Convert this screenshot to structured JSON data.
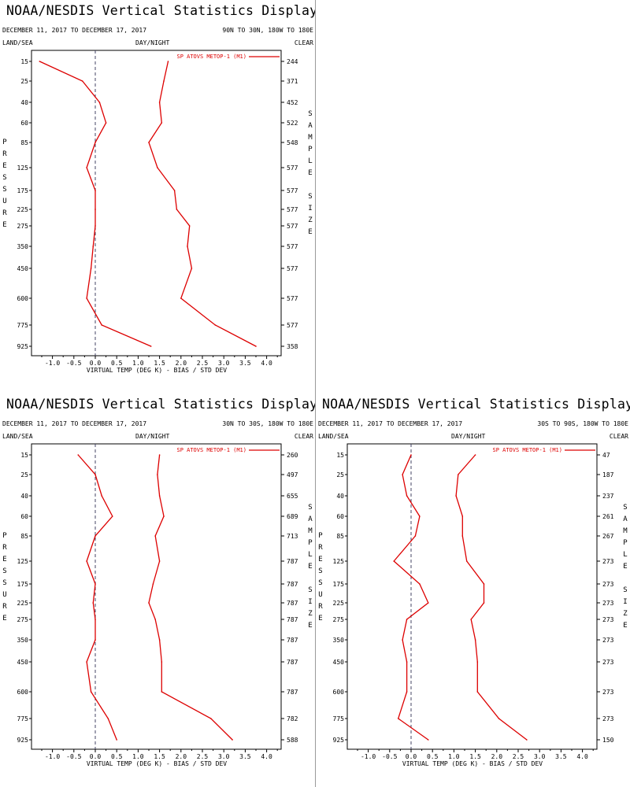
{
  "common": {
    "land_sea": "LAND/SEA",
    "day_night": "DAY/NIGHT",
    "clear": "CLEAR",
    "left_axis_label": "PRESSURE",
    "right_axis_label": "SAMPLE SIZE",
    "xlabel": "VIRTUAL TEMP (DEG K) - BIAS / STD DEV",
    "legend": "SP ATOVS METOP-1 (M1)",
    "colors": {
      "series": "#dd0000",
      "zero_line": "#444466",
      "axis": "#000000"
    }
  },
  "chart_data": [
    {
      "type": "line",
      "title": "NOAA/NESDIS Vertical Statistics Display",
      "date_range": "DECEMBER 11, 2017 TO DECEMBER 17, 2017",
      "region": "90N TO 30N, 180W TO 180E",
      "pressure_levels": [
        "15",
        "25",
        "40",
        "60",
        "85",
        "125",
        "175",
        "225",
        "275",
        "350",
        "450",
        "600",
        "775",
        "925"
      ],
      "xlim": [
        -1.5,
        4.5
      ],
      "xticks": [
        "-1.0",
        "-0.5",
        "0.0",
        "0.5",
        "1.0",
        "1.5",
        "2.0",
        "2.5",
        "3.0",
        "3.5",
        "4.0"
      ],
      "series": [
        {
          "values": [
            -1.3,
            -0.3,
            0.1,
            0.25,
            0.0,
            -0.2,
            0.0,
            0.0,
            0.0,
            -0.05,
            -0.1,
            -0.2,
            0.15,
            1.3
          ]
        },
        {
          "values": [
            1.7,
            1.6,
            1.5,
            1.55,
            1.25,
            1.45,
            1.85,
            1.9,
            2.2,
            2.15,
            2.25,
            2.0,
            2.8,
            3.75
          ]
        }
      ],
      "sample_size": [
        "244",
        "371",
        "452",
        "522",
        "548",
        "577",
        "577",
        "577",
        "577",
        "577",
        "577",
        "577",
        "577",
        "358"
      ]
    },
    {
      "type": "line",
      "title": "NOAA/NESDIS Vertical Statistics Display",
      "date_range": "DECEMBER 11, 2017 TO DECEMBER 17, 2017",
      "region": "30N TO 30S, 180W TO 180E",
      "pressure_levels": [
        "15",
        "25",
        "40",
        "60",
        "85",
        "125",
        "175",
        "225",
        "275",
        "350",
        "450",
        "600",
        "775",
        "925"
      ],
      "xlim": [
        -1.5,
        4.5
      ],
      "xticks": [
        "-1.0",
        "-0.5",
        "0.0",
        "0.5",
        "1.0",
        "1.5",
        "2.0",
        "2.5",
        "3.0",
        "3.5",
        "4.0"
      ],
      "series": [
        {
          "values": [
            -0.4,
            0.0,
            0.15,
            0.4,
            0.0,
            -0.2,
            0.0,
            -0.05,
            0.0,
            0.0,
            -0.2,
            -0.1,
            0.3,
            0.5
          ]
        },
        {
          "values": [
            1.5,
            1.45,
            1.5,
            1.6,
            1.4,
            1.5,
            1.35,
            1.25,
            1.4,
            1.5,
            1.55,
            1.55,
            2.7,
            3.2
          ]
        }
      ],
      "sample_size": [
        "260",
        "497",
        "655",
        "689",
        "713",
        "787",
        "787",
        "787",
        "787",
        "787",
        "787",
        "787",
        "782",
        "588"
      ]
    },
    {
      "type": "line",
      "title": "NOAA/NESDIS Vertical Statistics Display",
      "date_range": "DECEMBER 11, 2017 TO DECEMBER 17, 2017",
      "region": "30S TO 90S, 180W TO 180E",
      "pressure_levels": [
        "15",
        "25",
        "40",
        "60",
        "85",
        "125",
        "175",
        "225",
        "275",
        "350",
        "450",
        "600",
        "775",
        "925"
      ],
      "xlim": [
        -1.5,
        4.5
      ],
      "xticks": [
        "-1.0",
        "-0.5",
        "0.0",
        "0.5",
        "1.0",
        "1.5",
        "2.0",
        "2.5",
        "3.0",
        "3.5",
        "4.0"
      ],
      "series": [
        {
          "values": [
            0.0,
            -0.2,
            -0.1,
            0.2,
            0.1,
            -0.4,
            0.2,
            0.4,
            -0.1,
            -0.2,
            -0.1,
            -0.1,
            -0.3,
            0.4
          ]
        },
        {
          "values": [
            1.5,
            1.1,
            1.05,
            1.2,
            1.2,
            1.3,
            1.7,
            1.7,
            1.4,
            1.5,
            1.55,
            1.55,
            2.05,
            2.7
          ]
        }
      ],
      "sample_size": [
        "47",
        "187",
        "237",
        "261",
        "267",
        "273",
        "273",
        "273",
        "273",
        "273",
        "273",
        "273",
        "273",
        "150"
      ]
    }
  ]
}
